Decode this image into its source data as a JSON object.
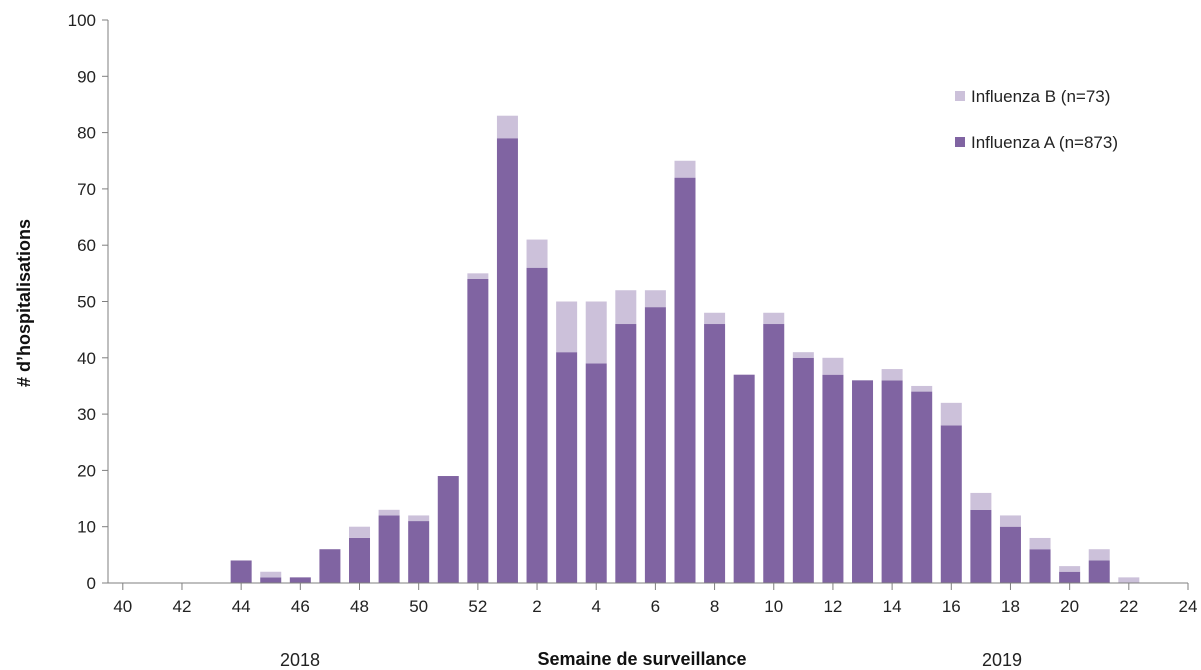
{
  "chart_data": {
    "type": "bar",
    "stacked": true,
    "xlabel": "Semaine de surveillance",
    "ylabel": "# d’hospitalisations",
    "ylim": [
      0,
      100
    ],
    "yticks": [
      0,
      10,
      20,
      30,
      40,
      50,
      60,
      70,
      80,
      90,
      100
    ],
    "categories": [
      "40",
      "41",
      "42",
      "43",
      "44",
      "45",
      "46",
      "47",
      "48",
      "49",
      "50",
      "51",
      "52",
      "1",
      "2",
      "3",
      "4",
      "5",
      "6",
      "7",
      "8",
      "9",
      "10",
      "11",
      "12",
      "13",
      "14",
      "15",
      "16",
      "17",
      "18",
      "19",
      "20",
      "21",
      "22",
      "23",
      "24"
    ],
    "xtick_labels": [
      "40",
      "42",
      "44",
      "46",
      "48",
      "50",
      "52",
      "2",
      "4",
      "6",
      "8",
      "10",
      "12",
      "14",
      "16",
      "18",
      "20",
      "22",
      "24"
    ],
    "year_labels": [
      "2018",
      "2019"
    ],
    "legend_position": "top-right",
    "grid": false,
    "series": [
      {
        "name": "Influenza A (n=873)",
        "color": "#8064a2",
        "values": [
          0,
          0,
          0,
          0,
          4,
          1,
          1,
          6,
          8,
          12,
          11,
          19,
          54,
          79,
          56,
          41,
          39,
          46,
          49,
          72,
          46,
          37,
          46,
          40,
          37,
          36,
          36,
          34,
          28,
          13,
          10,
          6,
          2,
          4,
          0,
          0,
          0
        ]
      },
      {
        "name": "Influenza B (n=73)",
        "color": "#ccc1da",
        "values": [
          0,
          0,
          0,
          0,
          0,
          1,
          0,
          0,
          2,
          1,
          1,
          0,
          1,
          4,
          5,
          9,
          11,
          6,
          3,
          3,
          2,
          0,
          2,
          1,
          3,
          0,
          2,
          1,
          4,
          3,
          2,
          2,
          1,
          2,
          1,
          0,
          0
        ]
      }
    ]
  }
}
